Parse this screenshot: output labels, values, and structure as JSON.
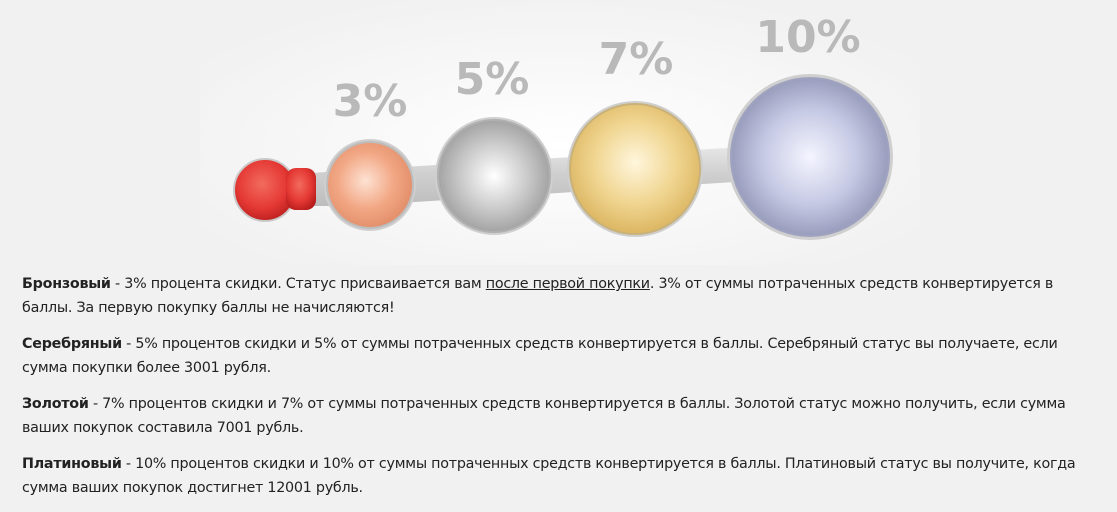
{
  "tiers_graphic": {
    "labels": [
      "3%",
      "5%",
      "7%",
      "10%"
    ],
    "colors": {
      "start": "#e53935",
      "bronze": "#f2a784",
      "silver": "#c9c9c9",
      "gold": "#f0d590",
      "platinum": "#c5c8e3",
      "track": "#d8d8d8",
      "label": "#b9b9b9"
    }
  },
  "descriptions": {
    "bronze": {
      "name": "Бронзовый",
      "text_before_link": " - 3% процента скидки. Статус присваивается вам ",
      "link": "после первой покупки",
      "text_after_link": ". 3% от суммы потраченных средств конвертируется в баллы. За первую покупку баллы не начисляются!"
    },
    "silver": {
      "name": "Серебряный",
      "text": " - 5% процентов скидки и 5% от суммы потраченных средств конвертируется в баллы. Серебряный статус вы получаете, если сумма покупки более 3001 рубля."
    },
    "gold": {
      "name": "Золотой",
      "text": " - 7% процентов скидки и 7% от суммы потраченных средств конвертируется в баллы. Золотой статус можно получить, если сумма ваших покупок составила 7001 рубль."
    },
    "platinum": {
      "name": "Платиновый",
      "text": " - 10% процентов скидки и 10% от суммы потраченных средств конвертируется в баллы. Платиновый статус вы получите, когда сумма ваших покупок достигнет 12001 рубль."
    }
  }
}
